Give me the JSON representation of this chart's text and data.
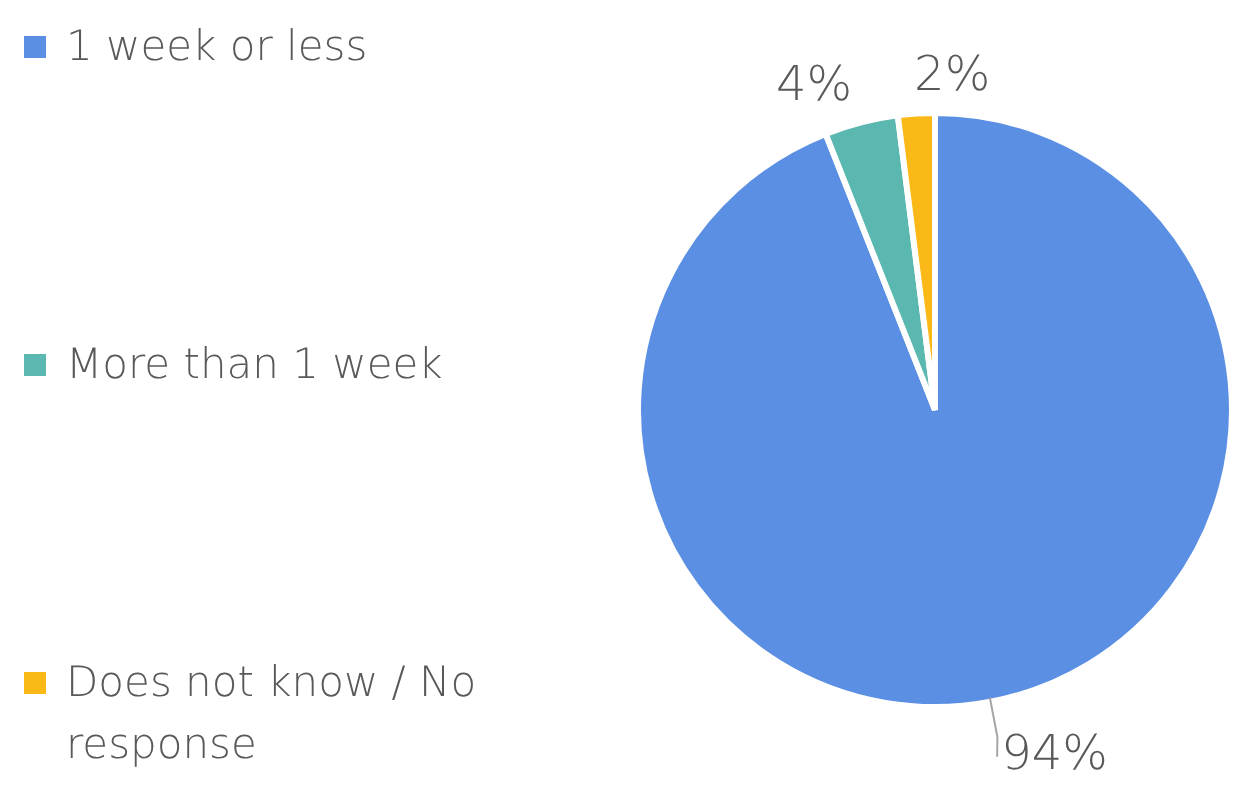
{
  "chart_data": {
    "type": "pie",
    "categories": [
      "1 week or less",
      "More than 1 week",
      "Does not know / No response"
    ],
    "values": [
      94,
      4,
      2
    ],
    "colors": [
      "#5b8fe3",
      "#5bb8b0",
      "#fbb917"
    ],
    "value_labels": [
      "94%",
      "4%",
      "2%"
    ],
    "legend": "left"
  }
}
